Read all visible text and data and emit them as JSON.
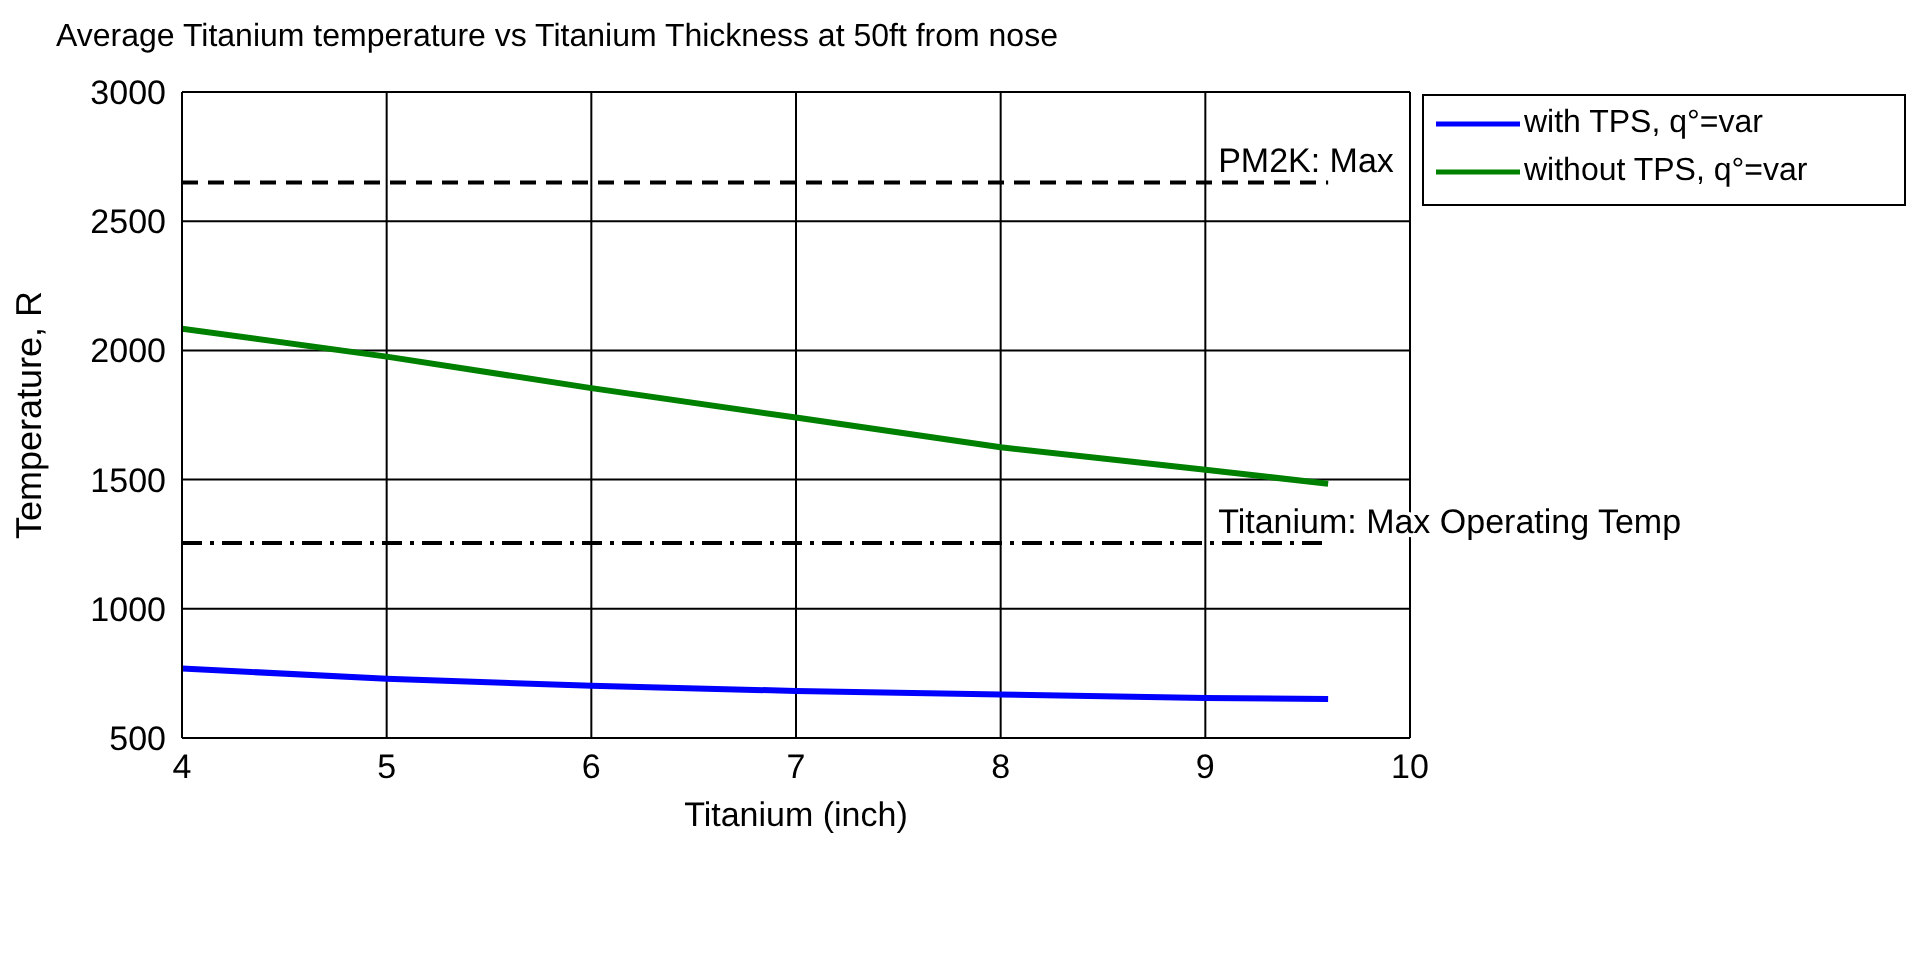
{
  "chart_data": {
    "type": "line",
    "title": "Average Titanium temperature vs Titanium Thickness at 50ft from nose",
    "xlabel": "Titanium (inch)",
    "ylabel": "Temperature, R",
    "x": [
      4,
      5,
      6,
      7,
      8,
      9,
      9.6
    ],
    "series": [
      {
        "name": "with TPS, q°=var",
        "color": "#0000ff",
        "values": [
          769,
          729,
          702,
          682,
          668,
          655,
          651
        ]
      },
      {
        "name": "without TPS, q°=var",
        "color": "#008000",
        "values": [
          2084,
          1976,
          1854,
          1740,
          1625,
          1538,
          1484
        ]
      }
    ],
    "xlim": [
      4,
      10
    ],
    "xticks": [
      4,
      5,
      6,
      7,
      8,
      9,
      10
    ],
    "ylim": [
      500,
      3000
    ],
    "yticks": [
      500,
      1000,
      1500,
      2000,
      2500,
      3000
    ],
    "ref_lines": [
      {
        "axis": "y",
        "value": 2650,
        "label": "PM2K: Max",
        "color": "#000000",
        "line_style": "dashed"
      },
      {
        "axis": "y",
        "value": 1255,
        "label": "Titanium: Max Operating Temp",
        "color": "#000000",
        "line_style": "dashdot"
      }
    ],
    "grid": true,
    "legend": "top right",
    "marker": "none",
    "line_style": "solid"
  }
}
